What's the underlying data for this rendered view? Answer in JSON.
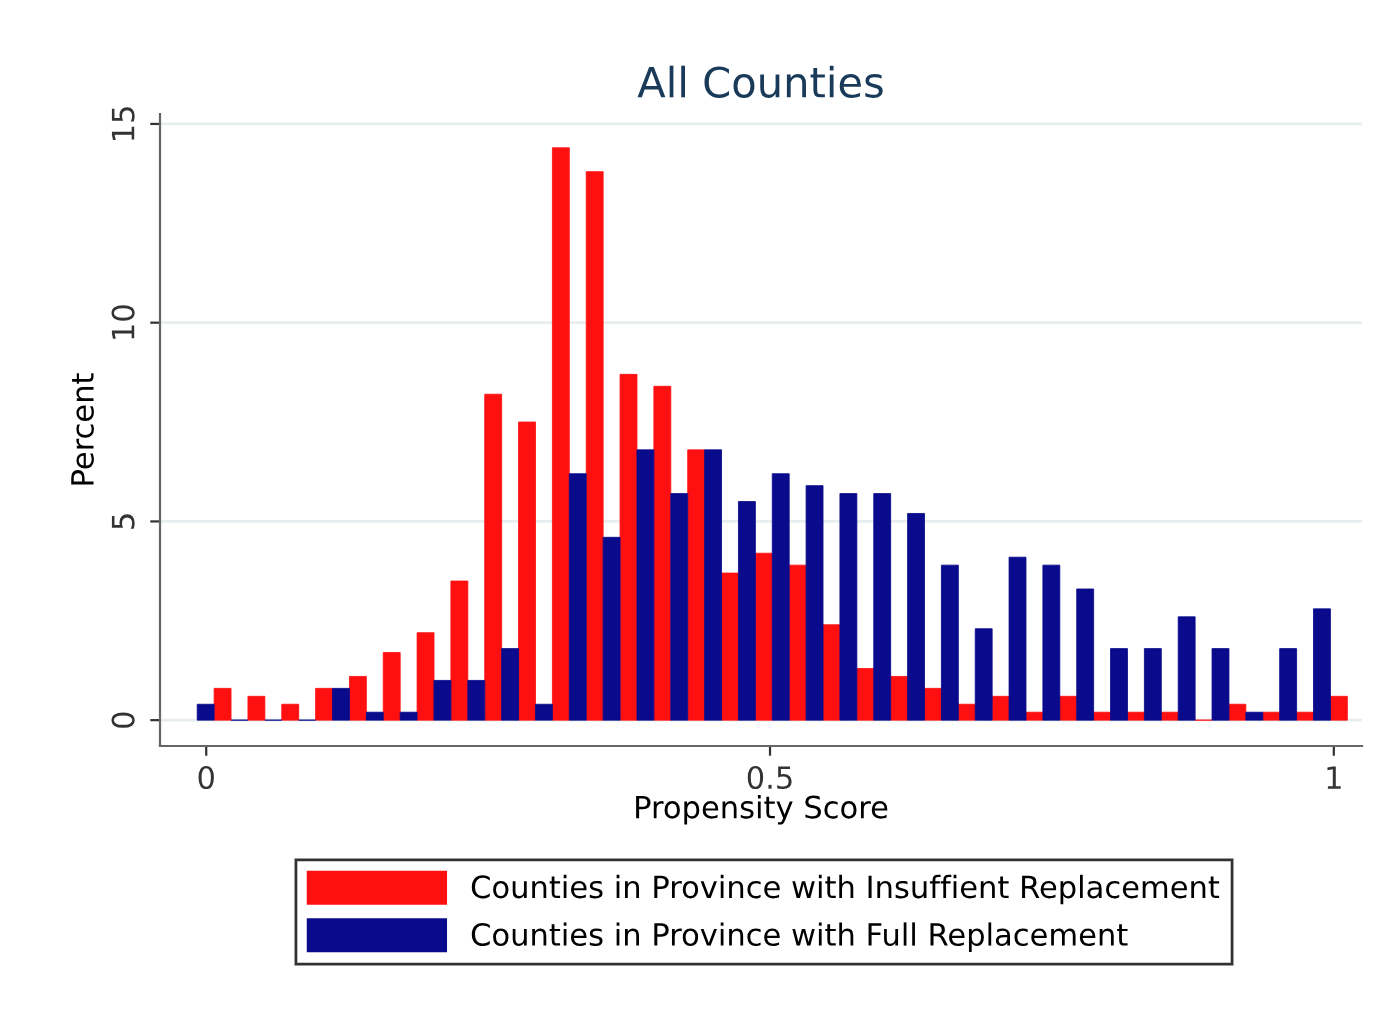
{
  "chart_data": {
    "type": "bar",
    "title": "All Counties",
    "xlabel": "Propensity Score",
    "ylabel": "Percent",
    "x": [
      0.007,
      0.037,
      0.067,
      0.097,
      0.127,
      0.157,
      0.187,
      0.217,
      0.247,
      0.277,
      0.307,
      0.337,
      0.367,
      0.397,
      0.427,
      0.457,
      0.487,
      0.517,
      0.547,
      0.577,
      0.607,
      0.637,
      0.667,
      0.697,
      0.727,
      0.757,
      0.787,
      0.817,
      0.847,
      0.877,
      0.907,
      0.937,
      0.967,
      0.997
    ],
    "series": [
      {
        "name": "Counties in Province with Insuffient Replacement",
        "color": "#ff1010",
        "values": [
          0.8,
          0.6,
          0.4,
          0.8,
          1.1,
          1.7,
          2.2,
          3.5,
          8.2,
          7.5,
          14.4,
          13.8,
          8.7,
          8.4,
          6.8,
          3.7,
          4.2,
          3.9,
          2.4,
          1.3,
          1.1,
          0.8,
          0.4,
          0.6,
          0.2,
          0.6,
          0.2,
          0.2,
          0.2,
          0,
          0.4,
          0.2,
          0.2,
          0.6
        ]
      },
      {
        "name": "Counties in Province with Full Replacement",
        "color": "#0a0a8c",
        "values": [
          0.4,
          0,
          0,
          0,
          0.8,
          0.2,
          0.2,
          1.0,
          1.0,
          1.8,
          0.4,
          6.2,
          4.6,
          6.8,
          5.7,
          6.8,
          5.5,
          6.2,
          5.9,
          5.7,
          5.7,
          5.2,
          3.9,
          2.3,
          4.1,
          3.9,
          3.3,
          1.8,
          1.8,
          2.6,
          1.8,
          0.2,
          1.8,
          2.8
        ]
      }
    ],
    "xlim": [
      -0.041,
      1.025
    ],
    "ylim": [
      -0.65,
      15.25
    ],
    "xticks": [
      0,
      0.5,
      1
    ],
    "yticks": [
      0,
      5,
      10,
      15
    ],
    "grid": "y",
    "legend": "bottom"
  }
}
